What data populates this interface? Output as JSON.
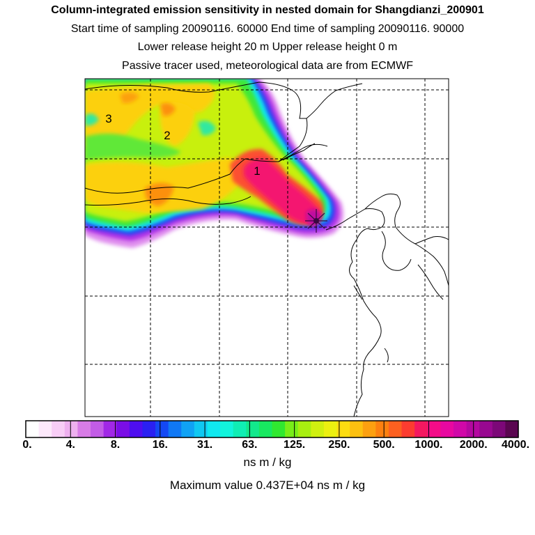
{
  "header": {
    "title": "Column-integrated emission sensitivity in nested domain for Shangdianzi_200901",
    "line2": "Start time of sampling 20090116. 60000     End time of sampling 20090116. 90000",
    "line3": "Lower release height   20 m          Upper release height    0 m",
    "line4": "Passive tracer used, meteorological data are from ECMWF"
  },
  "map": {
    "region_labels": [
      "3",
      "2",
      "1"
    ]
  },
  "colorbar": {
    "tick_labels": [
      "0.",
      "4.",
      "8.",
      "16.",
      "31.",
      "63.",
      "125.",
      "250.",
      "500.",
      "1000.",
      "2000.",
      "4000."
    ],
    "colors": [
      "#ffffff",
      "#fde9fb",
      "#f8cdf6",
      "#eeb0ef",
      "#d87ce6",
      "#c25ce6",
      "#a128e6",
      "#7a0ee6",
      "#4e0ef0",
      "#2a20f2",
      "#1448f4",
      "#1078f4",
      "#10a2f4",
      "#10c8f2",
      "#10e8f0",
      "#12f4dc",
      "#10eeb4",
      "#12e88c",
      "#18e860",
      "#30e830",
      "#78ee18",
      "#a8ee10",
      "#d0f010",
      "#ecf010",
      "#fcdc10",
      "#fcc010",
      "#fca010",
      "#fc8010",
      "#fc6020",
      "#fc3c30",
      "#f41860",
      "#f40c88",
      "#e808a0",
      "#d008a8",
      "#b408a0",
      "#980890",
      "#7c0878",
      "#5a0650"
    ],
    "units": "ns m / kg",
    "max_label": "Maximum value  0.437E+04 ns m / kg"
  }
}
